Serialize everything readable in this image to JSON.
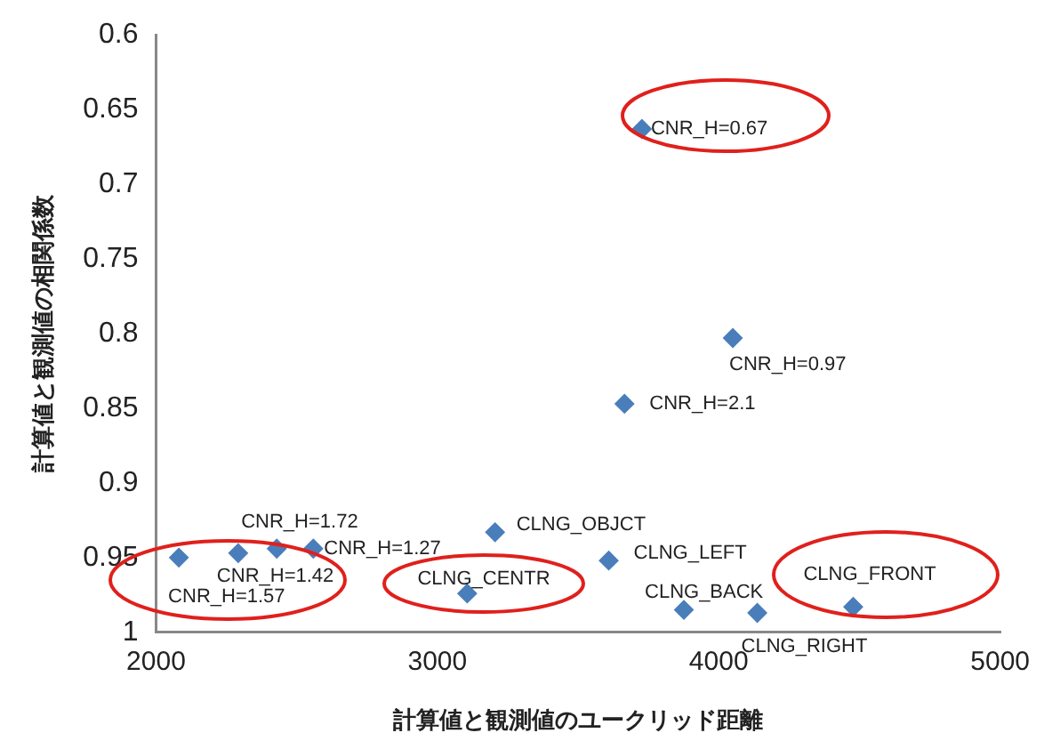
{
  "chart_data": {
    "type": "scatter",
    "xlabel": "計算値と観測値のユークリッド距離",
    "ylabel": "計算値と観測値の相関係数",
    "xlim": [
      2000,
      5000
    ],
    "xticks": [
      2000,
      3000,
      4000,
      5000
    ],
    "ylim": [
      1,
      0.6
    ],
    "yticks": [
      0.6,
      0.65,
      0.7,
      0.75,
      0.8,
      0.85,
      0.9,
      0.95,
      1
    ],
    "grid": false,
    "legend": false,
    "marker": "diamond",
    "series": [
      {
        "color": "#4a7ebb",
        "x": [
          2081,
          2292,
          2429,
          2559,
          3205,
          3106,
          3609,
          3876,
          4137,
          4478,
          3727,
          4050,
          3665
        ],
        "values": [
          0.95,
          0.947,
          0.944,
          0.944,
          0.933,
          0.974,
          0.952,
          0.985,
          0.987,
          0.983,
          0.663,
          0.803,
          0.847
        ]
      }
    ],
    "annotations": [
      {
        "text": "CNR_H=1.57",
        "x": 2081,
        "y": 0.95
      },
      {
        "text": "CNR_H=1.42",
        "x": 2292,
        "y": 0.947
      },
      {
        "text": "CNR_H=1.72",
        "x": 2429,
        "y": 0.944
      },
      {
        "text": "CNR_H=1.27",
        "x": 2559,
        "y": 0.944
      },
      {
        "text": "CLNG_OBJCT",
        "x": 3205,
        "y": 0.933
      },
      {
        "text": "CLNG_CENTR",
        "x": 3106,
        "y": 0.974
      },
      {
        "text": "CLNG_LEFT",
        "x": 3609,
        "y": 0.952
      },
      {
        "text": "CLNG_BACK",
        "x": 3876,
        "y": 0.985
      },
      {
        "text": "CLNG_RIGHT",
        "x": 4137,
        "y": 0.987
      },
      {
        "text": "CLNG_FRONT",
        "x": 4478,
        "y": 0.983
      },
      {
        "text": "CNR_H=0.67",
        "x": 3727,
        "y": 0.663
      },
      {
        "text": "CNR_H=0.97",
        "x": 4050,
        "y": 0.803
      },
      {
        "text": "CNR_H=2.1",
        "x": 3665,
        "y": 0.847
      }
    ]
  }
}
